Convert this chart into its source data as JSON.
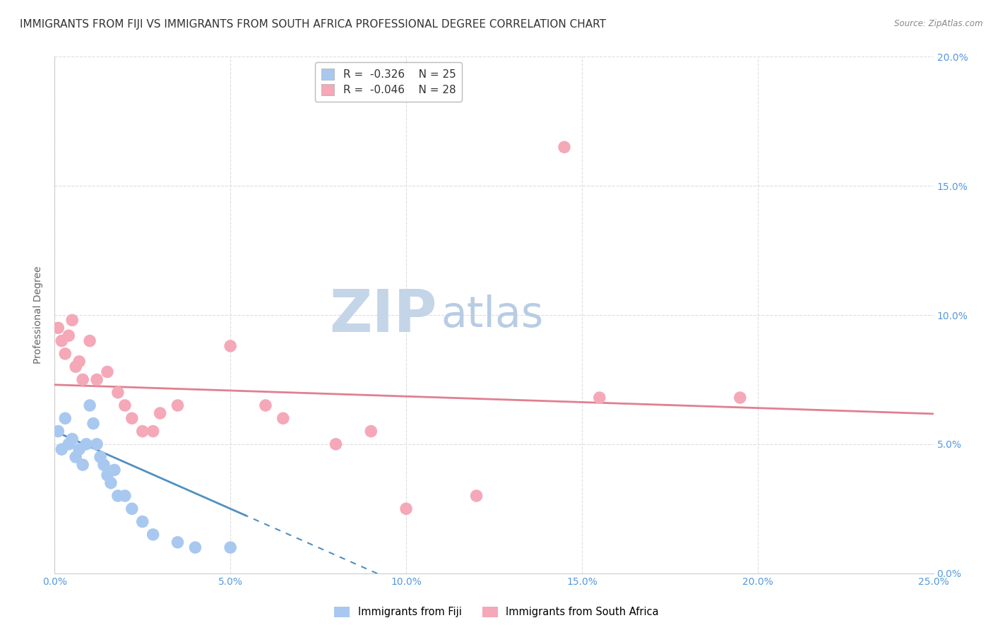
{
  "title": "IMMIGRANTS FROM FIJI VS IMMIGRANTS FROM SOUTH AFRICA PROFESSIONAL DEGREE CORRELATION CHART",
  "source": "Source: ZipAtlas.com",
  "xlabel": "",
  "ylabel": "Professional Degree",
  "xlim": [
    0.0,
    0.25
  ],
  "ylim": [
    0.0,
    0.2
  ],
  "xticks": [
    0.0,
    0.05,
    0.1,
    0.15,
    0.2,
    0.25
  ],
  "yticks": [
    0.0,
    0.05,
    0.1,
    0.15,
    0.2
  ],
  "xtick_labels": [
    "0.0%",
    "5.0%",
    "10.0%",
    "15.0%",
    "20.0%",
    "25.0%"
  ],
  "ytick_labels": [
    "0.0%",
    "5.0%",
    "10.0%",
    "15.0%",
    "20.0%"
  ],
  "right_ytick_labels": [
    "0.0%",
    "5.0%",
    "10.0%",
    "15.0%",
    "20.0%"
  ],
  "fiji_color": "#a8c8f0",
  "sa_color": "#f5a8b8",
  "fiji_line_color": "#5090c0",
  "sa_line_color": "#e08090",
  "fiji_R": -0.326,
  "fiji_N": 25,
  "sa_R": -0.046,
  "sa_N": 28,
  "legend_label_fiji": "Immigrants from Fiji",
  "legend_label_sa": "Immigrants from South Africa",
  "fiji_scatter_x": [
    0.001,
    0.002,
    0.003,
    0.004,
    0.005,
    0.006,
    0.007,
    0.008,
    0.009,
    0.01,
    0.011,
    0.012,
    0.013,
    0.014,
    0.015,
    0.016,
    0.017,
    0.018,
    0.02,
    0.022,
    0.025,
    0.028,
    0.035,
    0.04,
    0.05
  ],
  "fiji_scatter_y": [
    0.055,
    0.048,
    0.06,
    0.05,
    0.052,
    0.045,
    0.048,
    0.042,
    0.05,
    0.065,
    0.058,
    0.05,
    0.045,
    0.042,
    0.038,
    0.035,
    0.04,
    0.03,
    0.03,
    0.025,
    0.02,
    0.015,
    0.012,
    0.01,
    0.01
  ],
  "sa_scatter_x": [
    0.001,
    0.002,
    0.003,
    0.004,
    0.005,
    0.006,
    0.007,
    0.008,
    0.01,
    0.012,
    0.015,
    0.018,
    0.02,
    0.022,
    0.025,
    0.028,
    0.03,
    0.035,
    0.05,
    0.06,
    0.065,
    0.08,
    0.09,
    0.1,
    0.12,
    0.145,
    0.155,
    0.195
  ],
  "sa_scatter_y": [
    0.095,
    0.09,
    0.085,
    0.092,
    0.098,
    0.08,
    0.082,
    0.075,
    0.09,
    0.075,
    0.078,
    0.07,
    0.065,
    0.06,
    0.055,
    0.055,
    0.062,
    0.065,
    0.088,
    0.065,
    0.06,
    0.05,
    0.055,
    0.025,
    0.03,
    0.165,
    0.068,
    0.068
  ],
  "background_color": "#ffffff",
  "grid_color": "#e0e0e0",
  "title_fontsize": 11,
  "axis_label_fontsize": 10,
  "tick_fontsize": 10,
  "watermark_zip_color": "#c8d8f0",
  "watermark_atlas_color": "#b0c8e8",
  "watermark_fontsize": 60
}
